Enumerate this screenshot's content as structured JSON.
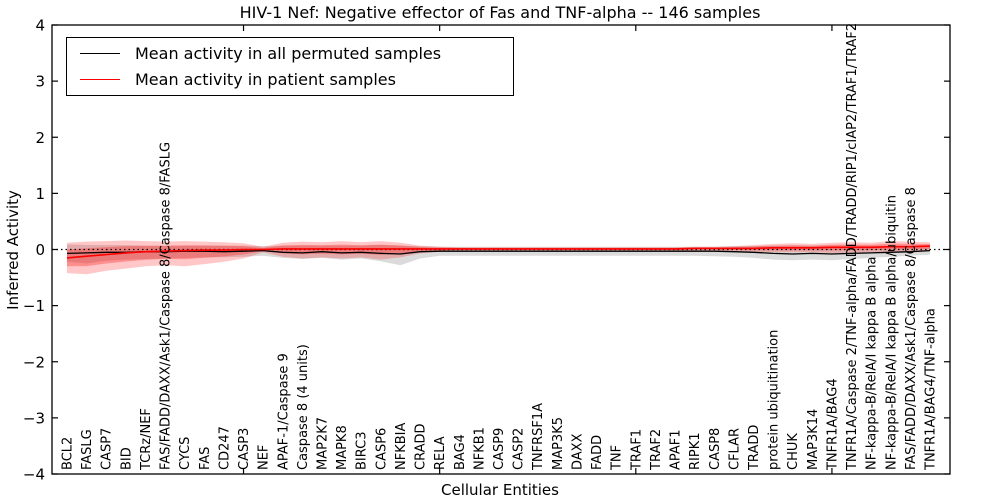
{
  "chart_data": {
    "type": "line",
    "title": "HIV-1 Nef: Negative effector of Fas and TNF-alpha -- 146 samples",
    "xlabel": "Cellular Entities",
    "ylabel": "Inferred Activity",
    "ylim": [
      -4,
      4
    ],
    "ytick_values": [
      4,
      3,
      2,
      1,
      0,
      -1,
      -2,
      -3,
      -4
    ],
    "ytick_labels": [
      "4",
      "3",
      "2",
      "1",
      "0",
      "−1",
      "−2",
      "−3",
      "−4"
    ],
    "xtick_values": [
      10,
      20,
      30,
      40
    ],
    "grid": false,
    "legend_position": "upper left",
    "reference_line": {
      "y": 0,
      "style": "dotted",
      "color": "#000000"
    },
    "categories": [
      "BCL2",
      "FASLG",
      "CASP7",
      "BID",
      "TCRz/NEF",
      "FAS/FADD/DAXX/Ask1/Caspase 8/Caspase 8/FASLG",
      "CYCS",
      "FAS",
      "CD247",
      "CASP3",
      "NEF",
      "APAF-1/Caspase 9",
      "Caspase 8 (4 units)",
      "MAP2K7",
      "MAPK8",
      "BIRC3",
      "CASP6",
      "NFKBIA",
      "CRADD",
      "RELA",
      "BAG4",
      "NFKB1",
      "CASP9",
      "CASP2",
      "TNFRSF1A",
      "MAP3K5",
      "DAXX",
      "FADD",
      "TNF",
      "TRAF1",
      "TRAF2",
      "APAF1",
      "RIPK1",
      "CASP8",
      "CFLAR",
      "TRADD",
      "protein ubiquitination",
      "CHUK",
      "MAP3K14",
      "TNFR1A/BAG4",
      "TNFR1A/Caspase 2/TNF-alpha/FADD/TRADD/RIP1/cIAP2/TRAF1/TRAF2",
      "NF-kappa-B/RelA/I kappa B alpha",
      "NF-kappa-B/RelA/I kappa B alpha/ubiquitin",
      "FAS/FADD/DAXX/Ask1/Caspase 8/Caspase 8",
      "TNFR1A/BAG4/TNF-alpha"
    ],
    "series": [
      {
        "name": "Mean activity in all permuted samples",
        "color": "#000000",
        "band_color": "#999999",
        "values": [
          -0.07,
          -0.06,
          -0.05,
          -0.05,
          -0.04,
          -0.04,
          -0.03,
          -0.03,
          -0.04,
          -0.03,
          -0.02,
          -0.05,
          -0.06,
          -0.04,
          -0.06,
          -0.05,
          -0.07,
          -0.08,
          -0.04,
          -0.03,
          -0.03,
          -0.03,
          -0.03,
          -0.03,
          -0.03,
          -0.03,
          -0.03,
          -0.03,
          -0.03,
          -0.03,
          -0.03,
          -0.03,
          -0.03,
          -0.03,
          -0.04,
          -0.05,
          -0.07,
          -0.08,
          -0.07,
          -0.08,
          -0.07,
          -0.06,
          -0.05,
          -0.04,
          -0.02
        ],
        "band_upper": [
          0.09,
          0.08,
          0.08,
          0.08,
          0.07,
          0.07,
          0.07,
          0.07,
          0.07,
          0.07,
          0.06,
          0.07,
          0.07,
          0.07,
          0.07,
          0.07,
          0.08,
          0.07,
          0.06,
          0.05,
          0.05,
          0.05,
          0.05,
          0.05,
          0.05,
          0.05,
          0.05,
          0.05,
          0.05,
          0.05,
          0.05,
          0.05,
          0.05,
          0.05,
          0.06,
          0.06,
          0.07,
          0.07,
          0.07,
          0.07,
          0.07,
          0.07,
          0.06,
          0.06,
          0.06
        ],
        "band_lower": [
          -0.22,
          -0.25,
          -0.2,
          -0.18,
          -0.17,
          -0.16,
          -0.15,
          -0.14,
          -0.14,
          -0.13,
          -0.11,
          -0.15,
          -0.17,
          -0.15,
          -0.18,
          -0.16,
          -0.21,
          -0.28,
          -0.16,
          -0.11,
          -0.11,
          -0.11,
          -0.11,
          -0.11,
          -0.11,
          -0.11,
          -0.11,
          -0.11,
          -0.11,
          -0.11,
          -0.11,
          -0.11,
          -0.11,
          -0.12,
          -0.13,
          -0.15,
          -0.18,
          -0.19,
          -0.18,
          -0.19,
          -0.17,
          -0.15,
          -0.13,
          -0.11,
          -0.09
        ]
      },
      {
        "name": "Mean activity in patient samples",
        "color": "#ff0000",
        "band_color": "#ff0000",
        "values": [
          -0.15,
          -0.12,
          -0.09,
          -0.06,
          -0.04,
          -0.03,
          -0.02,
          -0.01,
          -0.01,
          0.0,
          0.0,
          0.01,
          0.01,
          0.01,
          0.01,
          0.01,
          0.01,
          0.01,
          0.01,
          0.01,
          0.01,
          0.01,
          0.01,
          0.01,
          0.01,
          0.01,
          0.01,
          0.01,
          0.01,
          0.01,
          0.01,
          0.01,
          0.02,
          0.02,
          0.02,
          0.02,
          0.03,
          0.03,
          0.03,
          0.04,
          0.04,
          0.04,
          0.05,
          0.05,
          0.06
        ],
        "band_upper": [
          0.12,
          0.14,
          0.15,
          0.16,
          0.15,
          0.14,
          0.15,
          0.14,
          0.13,
          0.11,
          0.05,
          0.12,
          0.14,
          0.13,
          0.15,
          0.13,
          0.15,
          0.12,
          0.07,
          0.05,
          0.04,
          0.04,
          0.04,
          0.04,
          0.04,
          0.04,
          0.04,
          0.04,
          0.04,
          0.04,
          0.04,
          0.04,
          0.05,
          0.05,
          0.06,
          0.08,
          0.1,
          0.11,
          0.1,
          0.12,
          0.13,
          0.12,
          0.15,
          0.14,
          0.13
        ],
        "band_lower": [
          -0.42,
          -0.44,
          -0.38,
          -0.34,
          -0.3,
          -0.28,
          -0.3,
          -0.26,
          -0.22,
          -0.16,
          -0.05,
          -0.13,
          -0.16,
          -0.14,
          -0.16,
          -0.14,
          -0.18,
          -0.14,
          -0.07,
          -0.04,
          -0.02,
          -0.02,
          -0.02,
          -0.02,
          -0.02,
          -0.02,
          -0.02,
          -0.02,
          -0.02,
          -0.02,
          -0.02,
          -0.02,
          -0.02,
          -0.02,
          -0.03,
          -0.04,
          -0.05,
          -0.05,
          -0.05,
          -0.06,
          -0.06,
          -0.05,
          -0.05,
          -0.03,
          -0.02
        ]
      }
    ]
  },
  "legend": {
    "items": [
      {
        "label": "Mean activity in all permuted samples",
        "color": "#000000"
      },
      {
        "label": "Mean activity in patient samples",
        "color": "#ff0000"
      }
    ]
  }
}
